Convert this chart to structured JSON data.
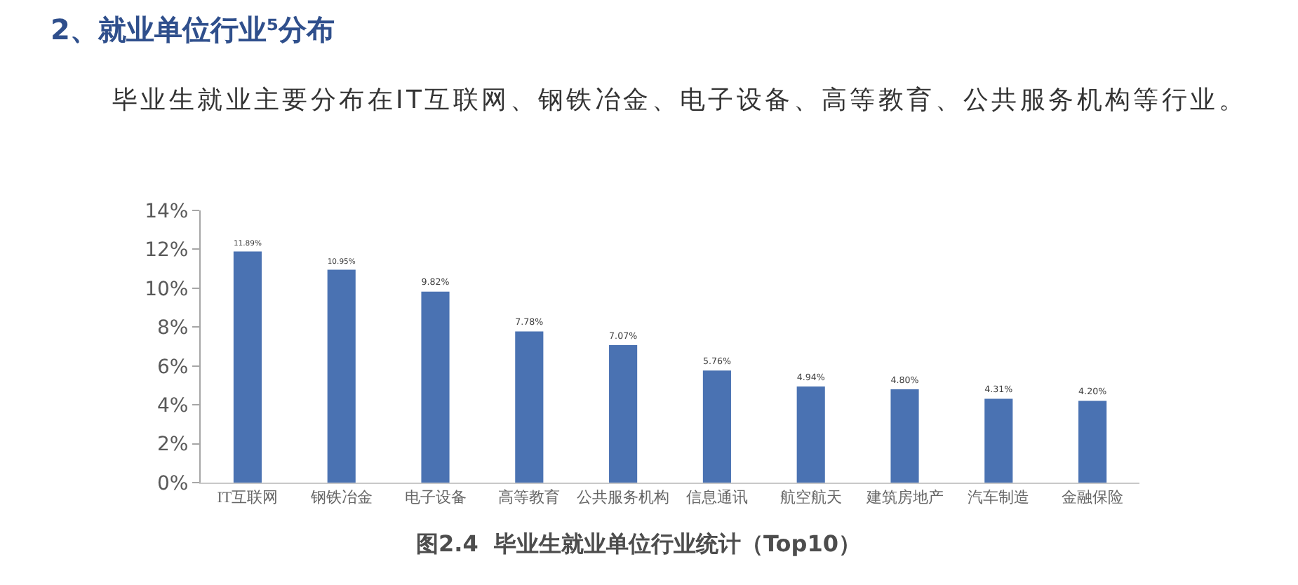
{
  "chart_data": {
    "type": "bar",
    "title": "2、就业单位行业⁵分布",
    "subtitle": "毕业生就业主要分布在IT互联网、钢铁冶金、电子设备、高等教育、公共服务机构等行业。",
    "annotations": [
      "图2.4  毕业生就业单位行业统计（Top10）"
    ],
    "categories": [
      "IT互联网",
      "钢铁冶金",
      "电子设备",
      "高等教育",
      "公共服务机构",
      "信息通讯",
      "航空航天",
      "建筑房地产",
      "汽车制造",
      "金融保险"
    ],
    "values": [
      11.89,
      10.95,
      9.82,
      7.78,
      7.07,
      5.76,
      4.94,
      4.8,
      4.31,
      4.2
    ],
    "value_labels": [
      "11.89%",
      "10.95%",
      "9.82%",
      "7.78%",
      "7.07%",
      "5.76%",
      "4.94%",
      "4.80%",
      "4.31%",
      "4.20%"
    ],
    "color": "#4a72b2",
    "ylim": [
      0,
      14
    ],
    "yticks": [
      {
        "value": 0,
        "label": "0%"
      },
      {
        "value": 2,
        "label": "2%"
      },
      {
        "value": 4,
        "label": "4%"
      },
      {
        "value": 6,
        "label": "6%"
      },
      {
        "value": 8,
        "label": "8%"
      },
      {
        "value": 10,
        "label": "10%"
      },
      {
        "value": 12,
        "label": "12%"
      },
      {
        "value": 14,
        "label": "14%"
      }
    ]
  }
}
